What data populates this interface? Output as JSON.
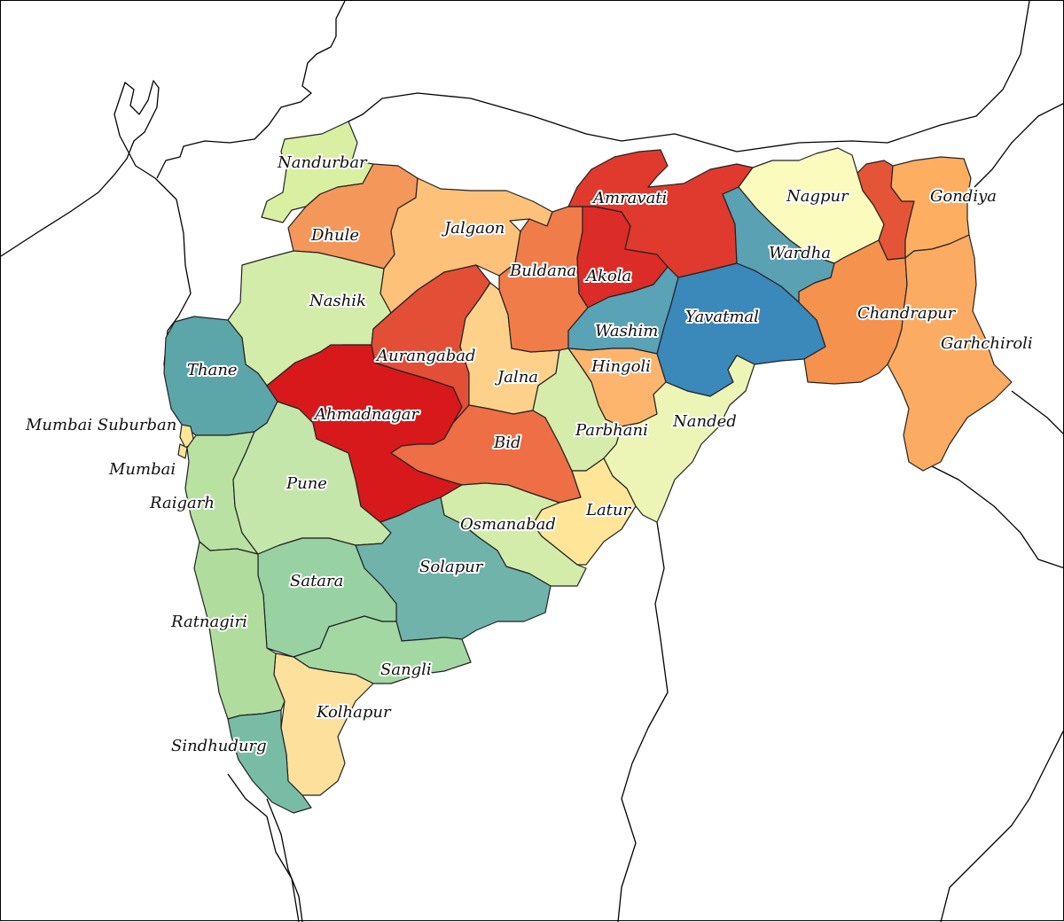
{
  "map": {
    "title": "",
    "districts": [
      {
        "id": "nandurbar",
        "label": "Nandurbar",
        "color": "#d9efa1"
      },
      {
        "id": "dhule",
        "label": "Dhule",
        "color": "#f4975a"
      },
      {
        "id": "jalgaon",
        "label": "Jalgaon",
        "color": "#fdc17a"
      },
      {
        "id": "nashik",
        "label": "Nashik",
        "color": "#d4ecaa"
      },
      {
        "id": "thane",
        "label": "Thane",
        "color": "#5ca5a9"
      },
      {
        "id": "mumbai-suburban",
        "label": "Mumbai Suburban",
        "color": "#fee597"
      },
      {
        "id": "mumbai",
        "label": "Mumbai",
        "color": "#fee597"
      },
      {
        "id": "raigarh",
        "label": "Raigarh",
        "color": "#b9e2a2"
      },
      {
        "id": "pune",
        "label": "Pune",
        "color": "#c4e6aa"
      },
      {
        "id": "ahmadnagar",
        "label": "Ahmadnagar",
        "color": "#d7191c"
      },
      {
        "id": "aurangabad",
        "label": "Aurangabad",
        "color": "#e34e37"
      },
      {
        "id": "jalna",
        "label": "Jalna",
        "color": "#fdd18a"
      },
      {
        "id": "bid",
        "label": "Bid",
        "color": "#ee6e46"
      },
      {
        "id": "buldana",
        "label": "Buldana",
        "color": "#f07c4a"
      },
      {
        "id": "akola",
        "label": "Akola",
        "color": "#dc2c28"
      },
      {
        "id": "amravati",
        "label": "Amravati",
        "color": "#df3a2d"
      },
      {
        "id": "washim",
        "label": "Washim",
        "color": "#5aa2b6"
      },
      {
        "id": "yavatmal",
        "label": "Yavatmal",
        "color": "#3b88ba"
      },
      {
        "id": "hingoli",
        "label": "Hingoli",
        "color": "#fdb56d"
      },
      {
        "id": "parbhani",
        "label": "Parbhani",
        "color": "#d6ecaa"
      },
      {
        "id": "nanded",
        "label": "Nanded",
        "color": "#ecf5b5"
      },
      {
        "id": "latur",
        "label": "Latur",
        "color": "#fee597"
      },
      {
        "id": "osmanabad",
        "label": "Osmanabad",
        "color": "#d4ecaa"
      },
      {
        "id": "solapur",
        "label": "Solapur",
        "color": "#6fb3aa"
      },
      {
        "id": "satara",
        "label": "Satara",
        "color": "#98d1a2"
      },
      {
        "id": "sangli",
        "label": "Sangli",
        "color": "#a3d8a2"
      },
      {
        "id": "kolhapur",
        "label": "Kolhapur",
        "color": "#fde09c"
      },
      {
        "id": "ratnagiri",
        "label": "Ratnagiri",
        "color": "#b0dc9e"
      },
      {
        "id": "sindhudurg",
        "label": "Sindhudurg",
        "color": "#78bca6"
      },
      {
        "id": "wardha",
        "label": "Wardha",
        "color": "#5aa1b4"
      },
      {
        "id": "nagpur",
        "label": "Nagpur",
        "color": "#fbfbbe"
      },
      {
        "id": "bhandara",
        "label": "",
        "color": "#e45437"
      },
      {
        "id": "gondiya",
        "label": "Gondiya",
        "color": "#fdae61"
      },
      {
        "id": "chandrapur",
        "label": "Chandrapur",
        "color": "#f4924e"
      },
      {
        "id": "garhchiroli",
        "label": "Garhchiroli",
        "color": "#fcab62"
      }
    ]
  }
}
